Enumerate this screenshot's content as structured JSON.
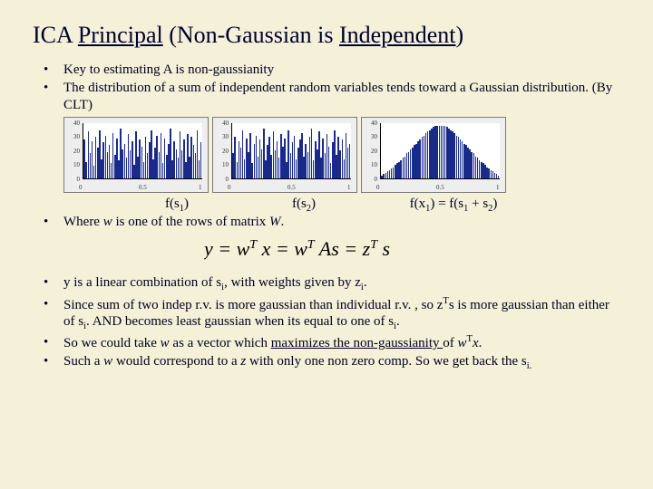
{
  "slide": {
    "background_color": "#f5f0d8",
    "text_color": "#000020",
    "font_family": "Times New Roman"
  },
  "title": {
    "pre": "ICA ",
    "u1": "Principal",
    "mid": " (Non-Gaussian is ",
    "u2": "Independent",
    "post": ")",
    "fontsize": 26
  },
  "top_bullets": {
    "b1": "Key to estimating A is non-gaussianity",
    "b2": "The distribution of a sum of independent random variables tends toward a Gaussian distribution. (By CLT)"
  },
  "charts": {
    "bar_color": "#1a2a8a",
    "plot_bg": "#ffffff",
    "panel_bg": "#eeeeee",
    "border_color": "#7a7a7a",
    "ylim": [
      0,
      40
    ],
    "yticks": [
      0,
      10,
      20,
      30,
      40
    ],
    "xticks": [
      0,
      0.5,
      1
    ],
    "panels": [
      {
        "label_html": "f(s<sub>1</sub>)",
        "heights": [
          28,
          12,
          34,
          18,
          27,
          9,
          30,
          22,
          35,
          14,
          26,
          31,
          19,
          24,
          11,
          33,
          17,
          29,
          13,
          36,
          21,
          25,
          15,
          32,
          20,
          27,
          10,
          34,
          16,
          28,
          23,
          12,
          30,
          18,
          26,
          35,
          14,
          22,
          31,
          19,
          33,
          11,
          29,
          17,
          25,
          36,
          13,
          27,
          21,
          15,
          34,
          20,
          28,
          12,
          32,
          16,
          30,
          24,
          18,
          35,
          13,
          26
        ]
      },
      {
        "label_html": "f(s<sub>2</sub>)",
        "heights": [
          18,
          30,
          12,
          27,
          22,
          35,
          14,
          29,
          19,
          33,
          11,
          25,
          31,
          16,
          28,
          21,
          36,
          13,
          24,
          30,
          17,
          34,
          20,
          27,
          15,
          32,
          23,
          29,
          12,
          35,
          18,
          26,
          31,
          14,
          22,
          28,
          33,
          16,
          25,
          19,
          30,
          36,
          13,
          27,
          21,
          34,
          15,
          29,
          18,
          32,
          23,
          11,
          26,
          35,
          17,
          30,
          20,
          28,
          14,
          33,
          22,
          25
        ]
      },
      {
        "label_html": "f(x<sub>1</sub>) = f(s<sub>1</sub> + s<sub>2</sub>)",
        "heights": [
          2,
          3,
          4,
          5,
          6,
          7,
          8,
          10,
          11,
          12,
          13,
          15,
          16,
          18,
          19,
          21,
          22,
          24,
          25,
          27,
          28,
          30,
          31,
          33,
          34,
          35,
          36,
          37,
          38,
          38,
          38,
          38,
          38,
          38,
          37,
          36,
          35,
          34,
          33,
          31,
          30,
          28,
          27,
          25,
          24,
          22,
          21,
          19,
          18,
          16,
          15,
          13,
          12,
          11,
          10,
          8,
          7,
          6,
          5,
          4,
          3,
          2
        ]
      }
    ]
  },
  "mid_bullet_pre": "Where ",
  "mid_bullet_w": "w",
  "mid_bullet_mid": " is one of the rows of matrix ",
  "mid_bullet_W": "W",
  "mid_bullet_post": ".",
  "equation": {
    "fontsize": 22,
    "font_style": "italic",
    "text_parts": [
      "y = w",
      "T",
      "x = w",
      "T",
      "As = z",
      "T",
      "s"
    ]
  },
  "bottom": {
    "b1_pre": "y is a linear combination of s",
    "b1_sub": "i",
    "b1_mid": ", with weights given by z",
    "b1_sub2": "i",
    "b1_post": ".",
    "b2": "Since sum of two indep r.v. is more gaussian than individual r.v. , so z",
    "b2_T": "T",
    "b2_s": "s is more gaussian than either of s",
    "b2_i": "i",
    "b2_mid": ". AND becomes least gaussian when its equal to one of s",
    "b2_i2": "i",
    "b2_post": ".",
    "b3_pre": "So we could take ",
    "b3_w": "w",
    "b3_mid": " as a vector which ",
    "b3_u": "maximizes the non-gaussianity ",
    "b3_of": "of ",
    "b3_wT": "w",
    "b3_T": "T",
    "b3_x": "x",
    "b3_post": ".",
    "b4_pre": "Such a ",
    "b4_w": "w",
    "b4_mid": " would correspond to a ",
    "b4_z": "z",
    "b4_mid2": " with only one non zero comp. So we get back the s",
    "b4_sub": "i.",
    "b4_post": ""
  }
}
